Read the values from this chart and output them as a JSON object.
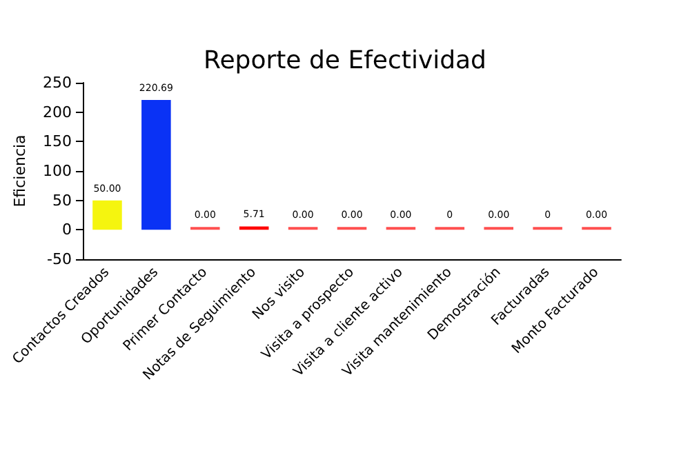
{
  "chart_data": {
    "type": "bar",
    "title": "Reporte de Efectividad",
    "ylabel": "Eficiencia",
    "categories": [
      "Contactos Creados",
      "Oportunidades",
      "Primer Contacto",
      "Notas de Seguimiento",
      "Nos visito",
      "Visita a prospecto",
      "Visita a cliente activo",
      "Visita mantenimiento",
      "Demostración",
      "Facturadas",
      "Monto Facturado"
    ],
    "values": [
      50,
      220.69,
      0,
      5.71,
      0,
      0,
      0,
      0,
      0,
      0,
      0
    ],
    "value_labels": [
      "50.00",
      "220.69",
      "0.00",
      "5.71",
      "0.00",
      "0.00",
      "0.00",
      "0",
      "0.00",
      "0",
      "0.00"
    ],
    "colors": [
      "#f5f50f",
      "#0a32f5",
      "#ff5050",
      "#ff0000",
      "#ff5050",
      "#ff5050",
      "#ff5050",
      "#ff5050",
      "#ff5050",
      "#ff5050",
      "#ff5050"
    ],
    "ylim": [
      -50,
      250
    ],
    "yticks": [
      -50,
      0,
      50,
      100,
      150,
      200,
      250
    ]
  }
}
